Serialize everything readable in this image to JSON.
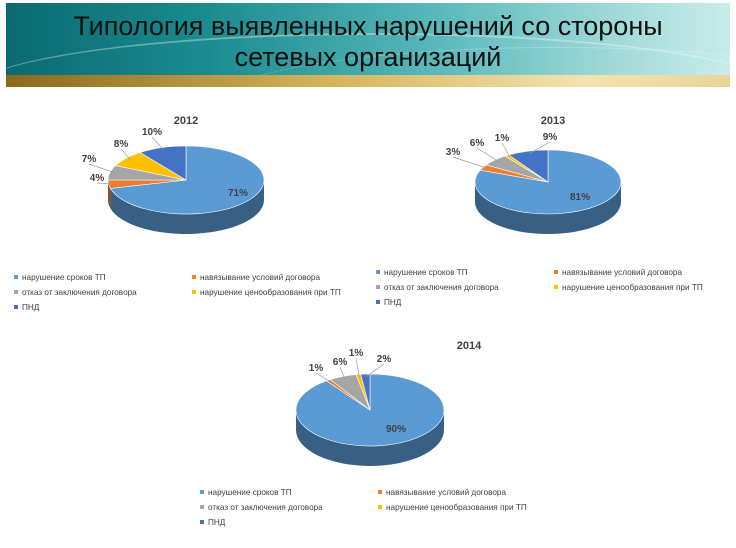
{
  "slide": {
    "title_line1": "Типология выявленных нарушений со стороны",
    "title_line2": "сетевых организаций"
  },
  "colors": {
    "header_dark": "#0a6a70",
    "header_light": "#c9ecea",
    "gold": "#d6b45a"
  },
  "chart_data": [
    {
      "type": "pie",
      "title": "2012",
      "categories": [
        "нарушение сроков ТП",
        "навязывание условий договора",
        "отказ от заключения договора",
        "нарушение ценообразования при ТП",
        "ПНД"
      ],
      "values": [
        71,
        4,
        7,
        8,
        10
      ],
      "labels": [
        "71%",
        "4%",
        "7%",
        "8%",
        "10%"
      ],
      "colors": [
        "#5b9bd5",
        "#ed7d31",
        "#a5a5a5",
        "#ffc000",
        "#4472c4"
      ],
      "legend": "bottom"
    },
    {
      "type": "pie",
      "title": "2013",
      "categories": [
        "нарушение сроков ТП",
        "навязывание условий договора",
        "отказ от заключения договора",
        "нарушение ценообразования при ТП",
        "ПНД"
      ],
      "values": [
        81,
        3,
        6,
        1,
        9
      ],
      "labels": [
        "81%",
        "3%",
        "6%",
        "1%",
        "9%"
      ],
      "colors": [
        "#5b9bd5",
        "#ed7d31",
        "#a5a5a5",
        "#ffc000",
        "#4472c4"
      ],
      "legend": "bottom"
    },
    {
      "type": "pie",
      "title": "2014",
      "categories": [
        "нарушение сроков ТП",
        "навязывание условий договора",
        "отказ от заключения договора",
        "нарушение ценообразования при ТП",
        "ПНД"
      ],
      "values": [
        90,
        1,
        6,
        1,
        2
      ],
      "labels": [
        "90%",
        "1%",
        "6%",
        "1%",
        "2%"
      ],
      "colors": [
        "#5b9bd5",
        "#ed7d31",
        "#a5a5a5",
        "#ffc000",
        "#4472c4"
      ],
      "legend": "bottom"
    }
  ]
}
